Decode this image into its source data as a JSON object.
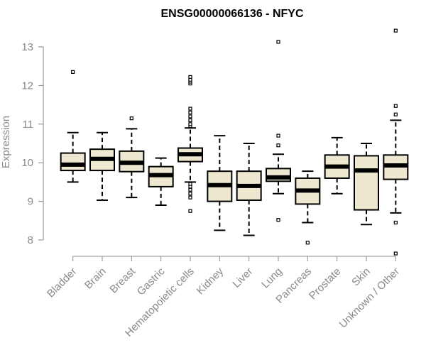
{
  "chart_data": {
    "type": "boxplot",
    "title": "ENSG00000066136 - NFYC",
    "ylabel": "Expression",
    "xlabel": "",
    "ylim": [
      7.6,
      13.5
    ],
    "yticks": [
      8,
      9,
      10,
      11,
      12,
      13
    ],
    "grid": false,
    "colors": {
      "box_fill": "#EEE8D0",
      "stroke": "#000000",
      "axis": "#8a8a8a"
    },
    "categories": [
      "Bladder",
      "Brain",
      "Breast",
      "Gastric",
      "Hematopoietic cells",
      "Kidney",
      "Liver",
      "Lung",
      "Pancreas",
      "Prostate",
      "Skin",
      "Unknown / Other"
    ],
    "boxes": [
      {
        "category": "Bladder",
        "whisker_low": 9.5,
        "q1": 9.8,
        "median": 9.95,
        "q3": 10.25,
        "whisker_high": 10.78,
        "outliers": [
          12.35
        ]
      },
      {
        "category": "Brain",
        "whisker_low": 9.03,
        "q1": 9.8,
        "median": 10.1,
        "q3": 10.35,
        "whisker_high": 10.78,
        "outliers": []
      },
      {
        "category": "Breast",
        "whisker_low": 9.1,
        "q1": 9.77,
        "median": 10.0,
        "q3": 10.3,
        "whisker_high": 10.88,
        "outliers": [
          11.15
        ]
      },
      {
        "category": "Gastric",
        "whisker_low": 8.9,
        "q1": 9.38,
        "median": 9.68,
        "q3": 9.9,
        "whisker_high": 10.12,
        "outliers": []
      },
      {
        "category": "Hematopoietic cells",
        "whisker_low": 9.5,
        "q1": 10.03,
        "median": 10.22,
        "q3": 10.38,
        "whisker_high": 10.9,
        "outliers": [
          8.75,
          9.1,
          9.2,
          9.3,
          9.38,
          9.45,
          10.95,
          11.0,
          11.1,
          11.2,
          11.3,
          11.4,
          12.05,
          12.1,
          12.15,
          12.22
        ]
      },
      {
        "category": "Kidney",
        "whisker_low": 8.25,
        "q1": 9.0,
        "median": 9.42,
        "q3": 9.78,
        "whisker_high": 10.7,
        "outliers": []
      },
      {
        "category": "Liver",
        "whisker_low": 8.12,
        "q1": 9.03,
        "median": 9.4,
        "q3": 9.78,
        "whisker_high": 10.5,
        "outliers": []
      },
      {
        "category": "Lung",
        "whisker_low": 9.2,
        "q1": 9.52,
        "median": 9.62,
        "q3": 9.85,
        "whisker_high": 10.22,
        "outliers": [
          8.52,
          10.45,
          10.7,
          13.13
        ]
      },
      {
        "category": "Pancreas",
        "whisker_low": 8.45,
        "q1": 8.93,
        "median": 9.28,
        "q3": 9.6,
        "whisker_high": 9.78,
        "outliers": [
          7.93
        ]
      },
      {
        "category": "Prostate",
        "whisker_low": 9.2,
        "q1": 9.6,
        "median": 9.9,
        "q3": 10.2,
        "whisker_high": 10.65,
        "outliers": []
      },
      {
        "category": "Skin",
        "whisker_low": 8.4,
        "q1": 8.78,
        "median": 9.8,
        "q3": 10.18,
        "whisker_high": 10.5,
        "outliers": []
      },
      {
        "category": "Unknown / Other",
        "whisker_low": 8.7,
        "q1": 9.57,
        "median": 9.93,
        "q3": 10.2,
        "whisker_high": 11.1,
        "outliers": [
          7.65,
          8.45,
          11.25,
          11.47,
          13.42
        ]
      }
    ]
  }
}
